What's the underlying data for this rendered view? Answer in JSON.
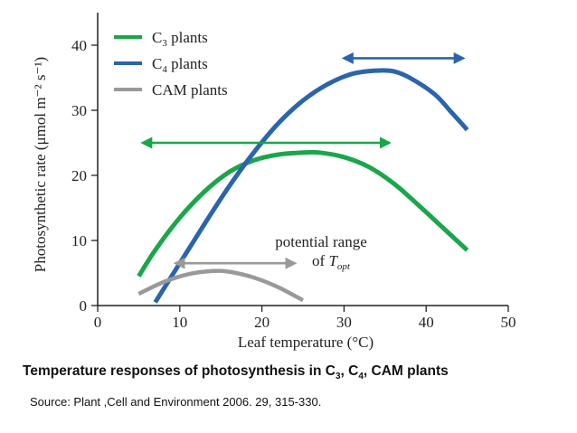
{
  "chart_data": {
    "type": "line",
    "xlabel": "Leaf temperature (°C)",
    "ylabel": "Photosynthetic rate (μmol m⁻² s⁻¹)",
    "xlim": [
      0,
      50
    ],
    "ylim": [
      0,
      45
    ],
    "xticks": [
      0,
      10,
      20,
      30,
      40,
      50
    ],
    "yticks": [
      0,
      10,
      20,
      30,
      40
    ],
    "grid": false,
    "legend_position": "top-left",
    "series": [
      {
        "name": "C3 plants",
        "color": "#1aa64a",
        "x": [
          5,
          7,
          10,
          13,
          16,
          19,
          22,
          25,
          27,
          30,
          33,
          36,
          39,
          42,
          45
        ],
        "y": [
          4.5,
          8.5,
          13.5,
          17.5,
          20.5,
          22.3,
          23.2,
          23.5,
          23.5,
          22.8,
          21.3,
          18.8,
          15.5,
          12,
          8.5
        ]
      },
      {
        "name": "C4 plants",
        "color": "#2b64ad",
        "x": [
          7,
          10,
          13,
          16,
          19,
          22,
          25,
          28,
          31,
          34,
          36,
          38,
          41,
          43,
          45
        ],
        "y": [
          0.5,
          6.5,
          12.5,
          18.3,
          23.5,
          28,
          31.5,
          34,
          35.6,
          36.1,
          36,
          35,
          32.5,
          29.8,
          27
        ]
      },
      {
        "name": "CAM plants",
        "color": "#999999",
        "x": [
          5,
          8,
          11,
          14,
          16,
          19,
          22,
          25
        ],
        "y": [
          1.8,
          3.6,
          4.8,
          5.3,
          5.2,
          4.3,
          2.8,
          0.8
        ]
      }
    ],
    "ranges": [
      {
        "series": "C3 plants",
        "from": 5.5,
        "to": 35.5,
        "y": 25,
        "color": "#1aa64a"
      },
      {
        "series": "C4 plants",
        "from": 30,
        "to": 44.5,
        "y": 38,
        "color": "#2b64ad"
      },
      {
        "series": "CAM plants",
        "from": 9.5,
        "to": 24,
        "y": 6.5,
        "color": "#999999"
      }
    ],
    "annotation": {
      "line1": "potential range",
      "line2_prefix": "of ",
      "line2_var": "T",
      "line2_sub": "opt"
    }
  },
  "caption": {
    "text_pre": "Temperature responses of photosynthesis in ",
    "c": "C",
    "sub1": "3",
    "sep": ", ",
    "sub2": "4",
    "text_post": ", CAM plants"
  },
  "source": "Source: Plant ,Cell and  Environment 2006. 29, 315-330."
}
